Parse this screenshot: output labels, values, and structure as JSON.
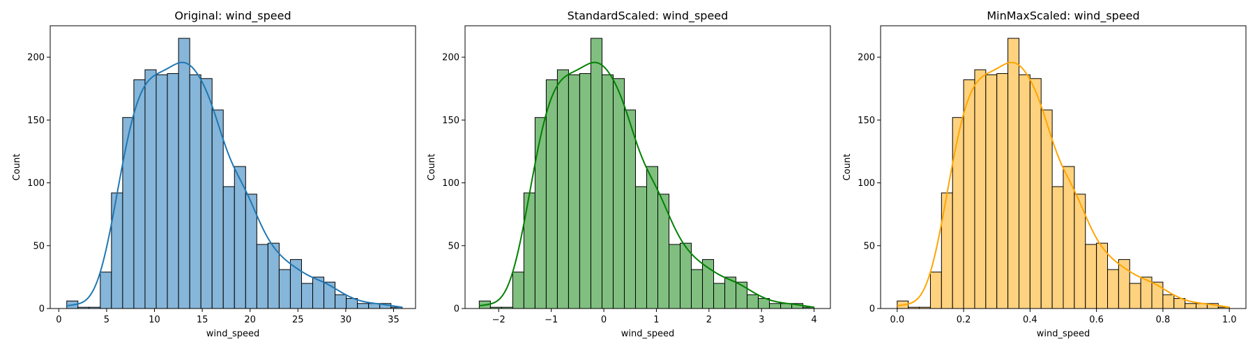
{
  "chart_data": [
    {
      "type": "bar",
      "title": "Original: wind_speed",
      "xlabel": "wind_speed",
      "ylabel": "Count",
      "xlim": [
        -0.9,
        37.3
      ],
      "ylim": [
        0,
        225
      ],
      "xticks": [
        0,
        5,
        10,
        15,
        20,
        25,
        30,
        35
      ],
      "xtick_labels": [
        "0",
        "5",
        "10",
        "15",
        "20",
        "25",
        "30",
        "35"
      ],
      "yticks": [
        0,
        50,
        100,
        150,
        200
      ],
      "ytick_labels": [
        "0",
        "50",
        "100",
        "150",
        "200"
      ],
      "bin_start": 0.83,
      "bin_end": 35.9,
      "counts": [
        6,
        1,
        1,
        29,
        92,
        152,
        182,
        190,
        186,
        187,
        215,
        186,
        183,
        158,
        97,
        113,
        91,
        51,
        52,
        31,
        39,
        20,
        25,
        21,
        11,
        8,
        4,
        4,
        4,
        1
      ],
      "fill_color": "#86b6d9",
      "line_color": "#1f77b4",
      "kde": true
    },
    {
      "type": "bar",
      "title": "StandardScaled: wind_speed",
      "xlabel": "wind_speed",
      "ylabel": "Count",
      "xlim": [
        -2.64,
        4.31
      ],
      "ylim": [
        0,
        225
      ],
      "xticks": [
        -2,
        -1,
        0,
        1,
        2,
        3,
        4
      ],
      "xtick_labels": [
        "−2",
        "−1",
        "0",
        "1",
        "2",
        "3",
        "4"
      ],
      "yticks": [
        0,
        50,
        100,
        150,
        200
      ],
      "ytick_labels": [
        "0",
        "50",
        "100",
        "150",
        "200"
      ],
      "bin_start": -2.37,
      "bin_end": 4.0,
      "counts": [
        6,
        1,
        1,
        29,
        92,
        152,
        182,
        190,
        186,
        187,
        215,
        186,
        183,
        158,
        97,
        113,
        91,
        51,
        52,
        31,
        39,
        20,
        25,
        21,
        11,
        8,
        4,
        4,
        4,
        1
      ],
      "fill_color": "#80bf80",
      "line_color": "#008000",
      "kde": true
    },
    {
      "type": "bar",
      "title": "MinMaxScaled: wind_speed",
      "xlabel": "wind_speed",
      "ylabel": "Count",
      "xlim": [
        -0.05,
        1.05
      ],
      "ylim": [
        0,
        225
      ],
      "xticks": [
        0.0,
        0.2,
        0.4,
        0.6,
        0.8,
        1.0
      ],
      "xtick_labels": [
        "0.0",
        "0.2",
        "0.4",
        "0.6",
        "0.8",
        "1.0"
      ],
      "yticks": [
        0,
        50,
        100,
        150,
        200
      ],
      "ytick_labels": [
        "0",
        "50",
        "100",
        "150",
        "200"
      ],
      "bin_start": 0.0,
      "bin_end": 1.0,
      "counts": [
        6,
        1,
        1,
        29,
        92,
        152,
        182,
        190,
        186,
        187,
        215,
        186,
        183,
        158,
        97,
        113,
        91,
        51,
        52,
        31,
        39,
        20,
        25,
        21,
        11,
        8,
        4,
        4,
        4,
        1
      ],
      "fill_color": "#ffd27f",
      "line_color": "#ffa500",
      "kde": true
    }
  ]
}
